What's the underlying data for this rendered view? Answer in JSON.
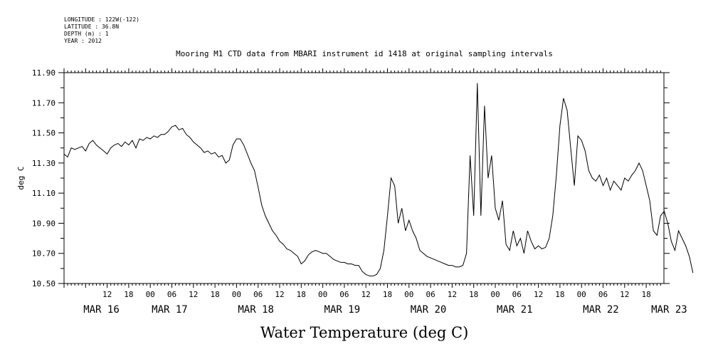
{
  "metadata": {
    "lines": [
      "LONGITUDE : 122W(-122)",
      "LATITUDE : 36.8N",
      "DEPTH (m) : 1",
      "YEAR : 2012"
    ]
  },
  "chart_data": {
    "type": "line",
    "title": "Mooring M1 CTD data from MBARI instrument id 1418 at original sampling intervals",
    "subtitle": "Water Temperature (deg C)",
    "ylabel": "deg C",
    "xlabel": "",
    "ylim": [
      10.5,
      11.9
    ],
    "xlim_hours": [
      0,
      168
    ],
    "y_ticks": [
      "10.50",
      "10.70",
      "10.90",
      "11.10",
      "11.30",
      "11.50",
      "11.70",
      "11.90"
    ],
    "x_hour_ticks": [
      {
        "hour": 12,
        "label": "12"
      },
      {
        "hour": 18,
        "label": "18"
      },
      {
        "hour": 24,
        "label": "00"
      },
      {
        "hour": 30,
        "label": "06"
      },
      {
        "hour": 36,
        "label": "12"
      },
      {
        "hour": 42,
        "label": "18"
      },
      {
        "hour": 48,
        "label": "00"
      },
      {
        "hour": 54,
        "label": "06"
      },
      {
        "hour": 60,
        "label": "12"
      },
      {
        "hour": 66,
        "label": "18"
      },
      {
        "hour": 72,
        "label": "00"
      },
      {
        "hour": 78,
        "label": "06"
      },
      {
        "hour": 84,
        "label": "12"
      },
      {
        "hour": 90,
        "label": "18"
      },
      {
        "hour": 96,
        "label": "00"
      },
      {
        "hour": 102,
        "label": "06"
      },
      {
        "hour": 108,
        "label": "12"
      },
      {
        "hour": 114,
        "label": "18"
      },
      {
        "hour": 120,
        "label": "00"
      },
      {
        "hour": 126,
        "label": "06"
      },
      {
        "hour": 132,
        "label": "12"
      },
      {
        "hour": 138,
        "label": "18"
      },
      {
        "hour": 144,
        "label": "00"
      },
      {
        "hour": 150,
        "label": "06"
      },
      {
        "hour": 156,
        "label": "12"
      },
      {
        "hour": 162,
        "label": "18"
      },
      {
        "hour": 168,
        "label": "00"
      },
      {
        "hour": 174,
        "label": "06"
      }
    ],
    "date_labels": [
      {
        "hour": 10,
        "label": "MAR 16"
      },
      {
        "hour": 29,
        "label": "MAR 17"
      },
      {
        "hour": 53,
        "label": "MAR 18"
      },
      {
        "hour": 77,
        "label": "MAR 19"
      },
      {
        "hour": 101,
        "label": "MAR 20"
      },
      {
        "hour": 125,
        "label": "MAR 21"
      },
      {
        "hour": 149,
        "label": "MAR 22"
      },
      {
        "hour": 168,
        "label": "MAR 23"
      }
    ],
    "series": [
      {
        "color": "#000000",
        "points": [
          [
            0,
            11.36
          ],
          [
            1,
            11.34
          ],
          [
            2,
            11.4
          ],
          [
            3,
            11.39
          ],
          [
            4,
            11.4
          ],
          [
            5,
            11.41
          ],
          [
            6,
            11.38
          ],
          [
            7,
            11.43
          ],
          [
            8,
            11.45
          ],
          [
            9,
            11.42
          ],
          [
            10,
            11.4
          ],
          [
            11,
            11.38
          ],
          [
            12,
            11.36
          ],
          [
            13,
            11.4
          ],
          [
            14,
            11.42
          ],
          [
            15,
            11.43
          ],
          [
            16,
            11.41
          ],
          [
            17,
            11.44
          ],
          [
            18,
            11.42
          ],
          [
            19,
            11.45
          ],
          [
            20,
            11.4
          ],
          [
            21,
            11.46
          ],
          [
            22,
            11.45
          ],
          [
            23,
            11.47
          ],
          [
            24,
            11.46
          ],
          [
            25,
            11.48
          ],
          [
            26,
            11.47
          ],
          [
            27,
            11.49
          ],
          [
            28,
            11.49
          ],
          [
            29,
            11.51
          ],
          [
            30,
            11.54
          ],
          [
            31,
            11.55
          ],
          [
            32,
            11.52
          ],
          [
            33,
            11.53
          ],
          [
            34,
            11.49
          ],
          [
            35,
            11.47
          ],
          [
            36,
            11.44
          ],
          [
            37,
            11.42
          ],
          [
            38,
            11.4
          ],
          [
            39,
            11.37
          ],
          [
            40,
            11.38
          ],
          [
            41,
            11.36
          ],
          [
            42,
            11.37
          ],
          [
            43,
            11.34
          ],
          [
            44,
            11.35
          ],
          [
            45,
            11.3
          ],
          [
            46,
            11.32
          ],
          [
            47,
            11.42
          ],
          [
            48,
            11.46
          ],
          [
            49,
            11.46
          ],
          [
            50,
            11.42
          ],
          [
            51,
            11.36
          ],
          [
            52,
            11.3
          ],
          [
            53,
            11.25
          ],
          [
            54,
            11.14
          ],
          [
            55,
            11.02
          ],
          [
            56,
            10.95
          ],
          [
            57,
            10.9
          ],
          [
            58,
            10.85
          ],
          [
            59,
            10.82
          ],
          [
            60,
            10.78
          ],
          [
            61,
            10.76
          ],
          [
            62,
            10.73
          ],
          [
            63,
            10.72
          ],
          [
            64,
            10.7
          ],
          [
            65,
            10.68
          ],
          [
            66,
            10.63
          ],
          [
            67,
            10.65
          ],
          [
            68,
            10.69
          ],
          [
            69,
            10.71
          ],
          [
            70,
            10.72
          ],
          [
            71,
            10.71
          ],
          [
            72,
            10.7
          ],
          [
            73,
            10.7
          ],
          [
            74,
            10.68
          ],
          [
            75,
            10.66
          ],
          [
            76,
            10.65
          ],
          [
            77,
            10.64
          ],
          [
            78,
            10.64
          ],
          [
            79,
            10.63
          ],
          [
            80,
            10.63
          ],
          [
            81,
            10.62
          ],
          [
            82,
            10.62
          ],
          [
            83,
            10.58
          ],
          [
            84,
            10.56
          ],
          [
            85,
            10.55
          ],
          [
            86,
            10.55
          ],
          [
            87,
            10.56
          ],
          [
            88,
            10.6
          ],
          [
            89,
            10.72
          ],
          [
            90,
            10.95
          ],
          [
            91,
            11.2
          ],
          [
            92,
            11.15
          ],
          [
            93,
            10.9
          ],
          [
            94,
            11.0
          ],
          [
            95,
            10.85
          ],
          [
            96,
            10.92
          ],
          [
            97,
            10.85
          ],
          [
            98,
            10.8
          ],
          [
            99,
            10.72
          ],
          [
            100,
            10.7
          ],
          [
            101,
            10.68
          ],
          [
            102,
            10.67
          ],
          [
            103,
            10.66
          ],
          [
            104,
            10.65
          ],
          [
            105,
            10.64
          ],
          [
            106,
            10.63
          ],
          [
            107,
            10.62
          ],
          [
            108,
            10.62
          ],
          [
            109,
            10.61
          ],
          [
            110,
            10.61
          ],
          [
            111,
            10.62
          ],
          [
            112,
            10.7
          ],
          [
            113,
            11.35
          ],
          [
            114,
            10.95
          ],
          [
            115,
            11.83
          ],
          [
            116,
            10.95
          ],
          [
            117,
            11.68
          ],
          [
            118,
            11.2
          ],
          [
            119,
            11.35
          ],
          [
            120,
            11.0
          ],
          [
            121,
            10.92
          ],
          [
            122,
            11.05
          ],
          [
            123,
            10.76
          ],
          [
            124,
            10.72
          ],
          [
            125,
            10.85
          ],
          [
            126,
            10.75
          ],
          [
            127,
            10.8
          ],
          [
            128,
            10.7
          ],
          [
            129,
            10.85
          ],
          [
            130,
            10.78
          ],
          [
            131,
            10.73
          ],
          [
            132,
            10.75
          ],
          [
            133,
            10.73
          ],
          [
            134,
            10.74
          ],
          [
            135,
            10.8
          ],
          [
            136,
            10.95
          ],
          [
            137,
            11.22
          ],
          [
            138,
            11.55
          ],
          [
            139,
            11.73
          ],
          [
            140,
            11.65
          ],
          [
            141,
            11.4
          ],
          [
            142,
            11.15
          ],
          [
            143,
            11.48
          ],
          [
            144,
            11.45
          ],
          [
            145,
            11.38
          ],
          [
            146,
            11.25
          ],
          [
            147,
            11.2
          ],
          [
            148,
            11.18
          ],
          [
            149,
            11.22
          ],
          [
            150,
            11.15
          ],
          [
            151,
            11.2
          ],
          [
            152,
            11.12
          ],
          [
            153,
            11.18
          ],
          [
            154,
            11.15
          ],
          [
            155,
            11.12
          ],
          [
            156,
            11.2
          ],
          [
            157,
            11.18
          ],
          [
            158,
            11.22
          ],
          [
            159,
            11.25
          ],
          [
            160,
            11.3
          ],
          [
            161,
            11.25
          ],
          [
            162,
            11.15
          ],
          [
            163,
            11.05
          ],
          [
            164,
            10.85
          ],
          [
            165,
            10.82
          ],
          [
            166,
            10.95
          ],
          [
            167,
            10.98
          ],
          [
            168,
            10.9
          ],
          [
            169,
            10.78
          ],
          [
            170,
            10.72
          ],
          [
            171,
            10.85
          ],
          [
            172,
            10.8
          ],
          [
            173,
            10.75
          ],
          [
            174,
            10.68
          ],
          [
            175,
            10.57
          ]
        ]
      }
    ]
  }
}
